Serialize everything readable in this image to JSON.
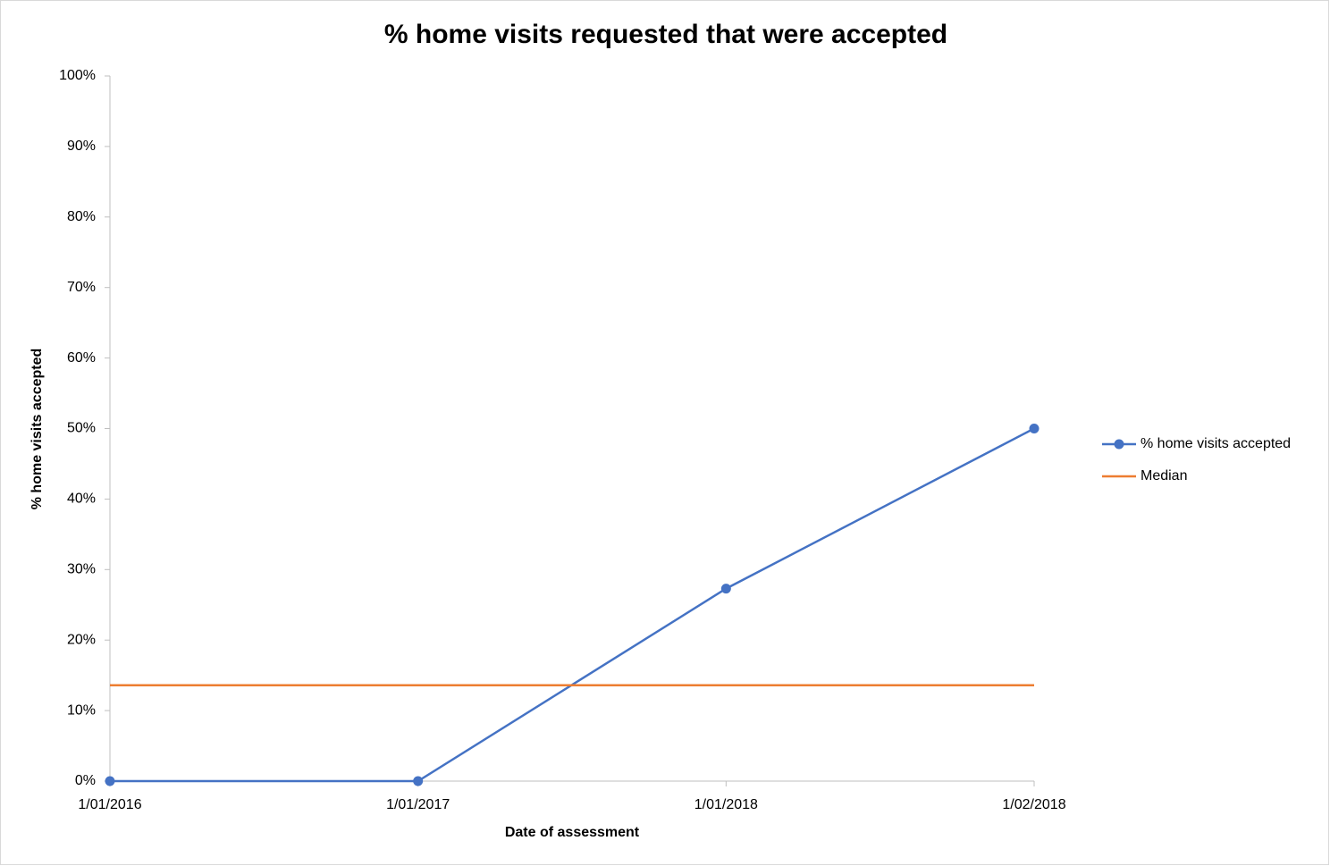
{
  "chart_data": {
    "type": "line",
    "title": "% home visits requested that were accepted",
    "x_label": "Date of assessment",
    "y_label": "% home visits accepted",
    "categories": [
      "1/01/2016",
      "1/01/2017",
      "1/01/2018",
      "1/02/2018"
    ],
    "series": [
      {
        "name": "% home visits accepted",
        "color": "#4472c4",
        "values": [
          0,
          0,
          27.3,
          50
        ],
        "marker": true
      },
      {
        "name": "Median",
        "color": "#ed7d31",
        "values": [
          13.6,
          13.6,
          13.6,
          13.6
        ],
        "marker": false
      }
    ],
    "ylim": [
      0,
      100
    ],
    "yticks": [
      {
        "value": 0,
        "label": "0%"
      },
      {
        "value": 10,
        "label": "10%"
      },
      {
        "value": 20,
        "label": "20%"
      },
      {
        "value": 30,
        "label": "30%"
      },
      {
        "value": 40,
        "label": "40%"
      },
      {
        "value": 50,
        "label": "50%"
      },
      {
        "value": 60,
        "label": "60%"
      },
      {
        "value": 70,
        "label": "70%"
      },
      {
        "value": 80,
        "label": "80%"
      },
      {
        "value": 90,
        "label": "90%"
      },
      {
        "value": 100,
        "label": "100%"
      }
    ],
    "grid": false,
    "legend": "right"
  }
}
